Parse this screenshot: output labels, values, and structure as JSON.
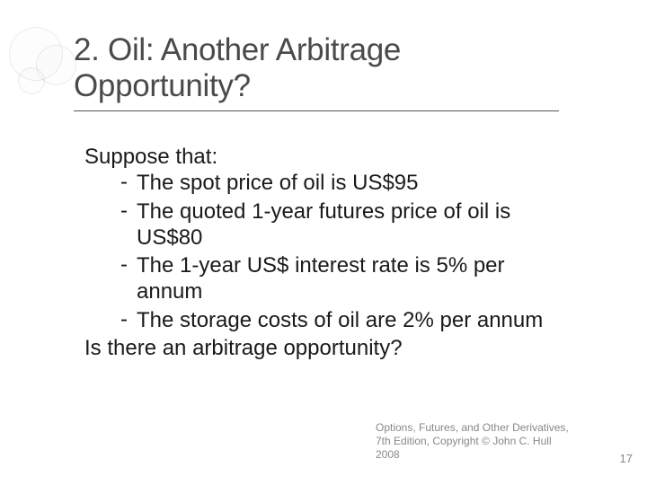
{
  "colors": {
    "background": "#ffffff",
    "title_color": "#4a4a4a",
    "body_color": "#1a1a1a",
    "footer_color": "#888888",
    "underline_color": "#555555",
    "decor_border": "rgba(180,180,180,0.25)"
  },
  "title": {
    "line1": "2. Oil:  Another Arbitrage",
    "line2": "Opportunity?",
    "fontsize": 35
  },
  "body": {
    "intro": "Suppose that:",
    "bullets": [
      "The spot price of oil is US$95",
      "The quoted  1-year futures price of oil is US$80",
      "The 1-year US$ interest rate  is 5% per annum",
      "The storage  costs of oil are 2% per annum"
    ],
    "closing": "Is there an arbitrage opportunity?",
    "fontsize": 24,
    "bullet_dash": "-"
  },
  "footer": {
    "line1": "Options, Futures, and Other Derivatives,",
    "line2": "7th Edition, Copyright © John C. Hull",
    "line3": "2008",
    "fontsize": 12
  },
  "page_number": "17"
}
